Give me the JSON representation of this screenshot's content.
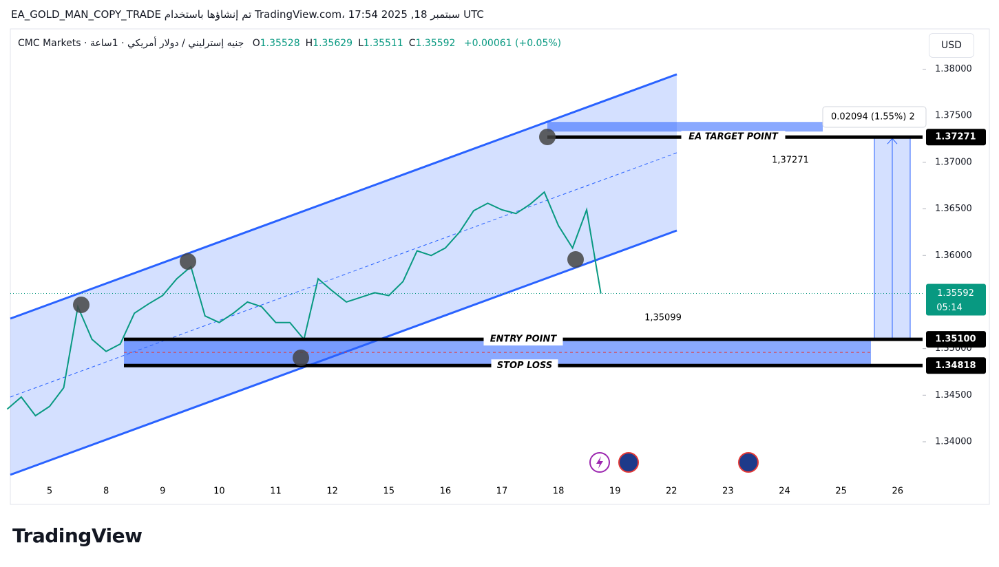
{
  "header": {
    "title": "EA_GOLD_MAN_COPY_TRADE تم إنشاؤها باستخدام TradingView.com، 17:54 2025 ,18 سبتمبر UTC"
  },
  "chart_data": {
    "type": "line",
    "symbol": "جنيه إسترليني / دولار أمريكي · 1ساعة · CMC Markets",
    "ohlc": [
      {
        "label": "O",
        "value": 1.35528
      },
      {
        "label": "H",
        "value": 1.35629
      },
      {
        "label": "L",
        "value": 1.35511
      },
      {
        "label": "C",
        "value": 1.35592
      }
    ],
    "change": "+0.00061 (+0.05%)",
    "currency": "USD",
    "categories": [
      null,
      null,
      null,
      "5",
      null,
      null,
      null,
      "8",
      null,
      null,
      null,
      "9",
      null,
      null,
      null,
      "10",
      null,
      null,
      null,
      "11",
      null,
      null,
      null,
      "12",
      null,
      null,
      null,
      "15",
      null,
      null,
      null,
      "16",
      null,
      null,
      null,
      "17",
      null,
      null,
      null,
      "18",
      null,
      null,
      null,
      "19",
      null,
      null,
      null,
      "22",
      null,
      null,
      null,
      "23",
      null,
      null,
      null,
      "24",
      null,
      null,
      null,
      "25",
      null,
      null,
      null,
      "26",
      null,
      null,
      null
    ],
    "series": [
      {
        "name": "GBPUSD",
        "color": "#089981",
        "values": [
          1.3435,
          1.3448,
          1.3428,
          1.3438,
          1.3458,
          1.3545,
          1.351,
          1.3497,
          1.3505,
          1.3538,
          1.3548,
          1.3557,
          1.3575,
          1.3588,
          1.3535,
          1.3528,
          1.3538,
          1.355,
          1.3545,
          1.3528,
          1.3528,
          1.351,
          1.3575,
          1.3562,
          1.355,
          1.3555,
          1.356,
          1.3557,
          1.3572,
          1.3605,
          1.36,
          1.3608,
          1.3625,
          1.3648,
          1.3656,
          1.3649,
          1.3645,
          1.3655,
          1.3668,
          1.3632,
          1.3608,
          1.3649,
          1.35592,
          null,
          null,
          null,
          null,
          null,
          null,
          null,
          null,
          null,
          null,
          null,
          null,
          null,
          null,
          null,
          null,
          null,
          null,
          null,
          null,
          null,
          null,
          null,
          null
        ]
      }
    ],
    "ylim": [
      1.3335,
      1.3841
    ],
    "yticks": [
      {
        "value": 1.34,
        "label": "1.34000"
      },
      {
        "value": 1.345,
        "label": "1.34500"
      },
      {
        "value": 1.35,
        "label": "1.35000"
      },
      {
        "value": 1.36,
        "label": "1.36000"
      },
      {
        "value": 1.365,
        "label": "1.36500"
      },
      {
        "value": 1.37,
        "label": "1.37000"
      },
      {
        "value": 1.375,
        "label": "1.37500"
      },
      {
        "value": 1.38,
        "label": "1.38000"
      }
    ],
    "levels": [
      {
        "name": "EA TARGET POINT",
        "value": 1.37271
      },
      {
        "name": "ENTRY POINT",
        "value": 1.351,
        "label": "1.35100"
      },
      {
        "name": "STOP LOSS",
        "value": 1.34818
      }
    ],
    "last": {
      "value": 1.35592,
      "countdown": "05:14"
    },
    "measure": "0.02094 (1.55%) 2",
    "annotations": [
      "1,37271",
      "1,35099"
    ]
  },
  "footer": {
    "logo": "TradingView"
  }
}
